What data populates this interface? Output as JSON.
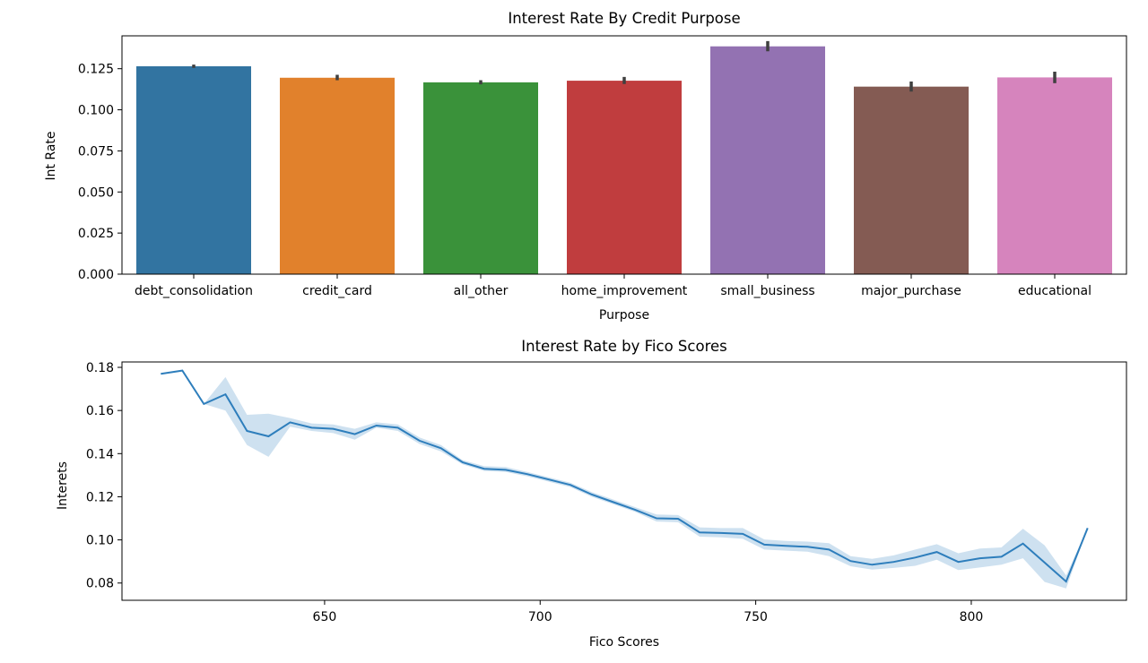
{
  "chart_data": [
    {
      "type": "bar",
      "title": "Interest Rate By Credit Purpose",
      "xlabel": "Purpose",
      "ylabel": "Int Rate",
      "categories": [
        "debt_consolidation",
        "credit_card",
        "all_other",
        "home_improvement",
        "small_business",
        "major_purchase",
        "educational"
      ],
      "values": [
        0.1265,
        0.1195,
        0.1167,
        0.1177,
        0.1386,
        0.1141,
        0.1197
      ],
      "error_low": [
        0.1255,
        0.118,
        0.1155,
        0.1157,
        0.1356,
        0.1111,
        0.1162
      ],
      "error_high": [
        0.1275,
        0.1213,
        0.118,
        0.12,
        0.1418,
        0.1172,
        0.1232
      ],
      "colors": [
        "#3274a1",
        "#e1812c",
        "#3a923a",
        "#c03d3e",
        "#9372b2",
        "#845b53",
        "#d684bd"
      ],
      "error_color": "#3f3f3f",
      "ylim": [
        0,
        0.145
      ],
      "yticks": [
        0.0,
        0.025,
        0.05,
        0.075,
        0.1,
        0.125
      ],
      "yticklabels": [
        "0.000",
        "0.025",
        "0.050",
        "0.075",
        "0.100",
        "0.125"
      ]
    },
    {
      "type": "line",
      "title": "Interest Rate by Fico Scores",
      "xlabel": "Fico Scores",
      "ylabel": "Interets",
      "x": [
        612,
        617,
        622,
        627,
        632,
        637,
        642,
        647,
        652,
        657,
        662,
        667,
        672,
        677,
        682,
        687,
        692,
        697,
        702,
        707,
        712,
        717,
        722,
        727,
        732,
        737,
        742,
        747,
        752,
        757,
        762,
        767,
        772,
        777,
        782,
        787,
        792,
        797,
        802,
        807,
        812,
        817,
        822,
        827
      ],
      "y": [
        0.177,
        0.1785,
        0.163,
        0.1675,
        0.1505,
        0.148,
        0.1545,
        0.152,
        0.1515,
        0.149,
        0.153,
        0.152,
        0.146,
        0.1425,
        0.136,
        0.133,
        0.1325,
        0.1305,
        0.128,
        0.1255,
        0.121,
        0.1175,
        0.114,
        0.11,
        0.1098,
        0.1035,
        0.1032,
        0.1028,
        0.0978,
        0.0972,
        0.0968,
        0.0955,
        0.0902,
        0.0885,
        0.0898,
        0.0918,
        0.0944,
        0.0898,
        0.0915,
        0.0922,
        0.0983,
        0.0895,
        0.0807,
        0.1055
      ],
      "ci_low": [
        0.177,
        0.1785,
        0.163,
        0.16,
        0.144,
        0.1385,
        0.1525,
        0.1505,
        0.1495,
        0.1465,
        0.152,
        0.1505,
        0.1445,
        0.141,
        0.135,
        0.132,
        0.1315,
        0.1295,
        0.127,
        0.1245,
        0.12,
        0.1165,
        0.113,
        0.1085,
        0.1082,
        0.1015,
        0.1012,
        0.1005,
        0.0955,
        0.095,
        0.0945,
        0.0925,
        0.0878,
        0.0862,
        0.087,
        0.088,
        0.0908,
        0.086,
        0.0872,
        0.0885,
        0.0915,
        0.0805,
        0.0775,
        0.1055
      ],
      "ci_high": [
        0.177,
        0.1785,
        0.163,
        0.1755,
        0.158,
        0.1585,
        0.1565,
        0.154,
        0.1535,
        0.1515,
        0.1545,
        0.1535,
        0.1475,
        0.144,
        0.137,
        0.1342,
        0.1338,
        0.1315,
        0.129,
        0.1265,
        0.1222,
        0.1187,
        0.1152,
        0.1118,
        0.1115,
        0.1058,
        0.1055,
        0.1055,
        0.1002,
        0.0995,
        0.0992,
        0.0985,
        0.0925,
        0.0912,
        0.0928,
        0.0955,
        0.098,
        0.0938,
        0.096,
        0.0965,
        0.1052,
        0.0975,
        0.0835,
        0.1055
      ],
      "line_color": "#2e7ebc",
      "band_color": "#a6c8e4",
      "xlim": [
        603,
        836
      ],
      "ylim": [
        0.072,
        0.1825
      ],
      "xticks": [
        650,
        700,
        750,
        800
      ],
      "xticklabels": [
        "650",
        "700",
        "750",
        "800"
      ],
      "yticks": [
        0.08,
        0.1,
        0.12,
        0.14,
        0.16,
        0.18
      ],
      "yticklabels": [
        "0.08",
        "0.10",
        "0.12",
        "0.14",
        "0.16",
        "0.18"
      ]
    }
  ]
}
